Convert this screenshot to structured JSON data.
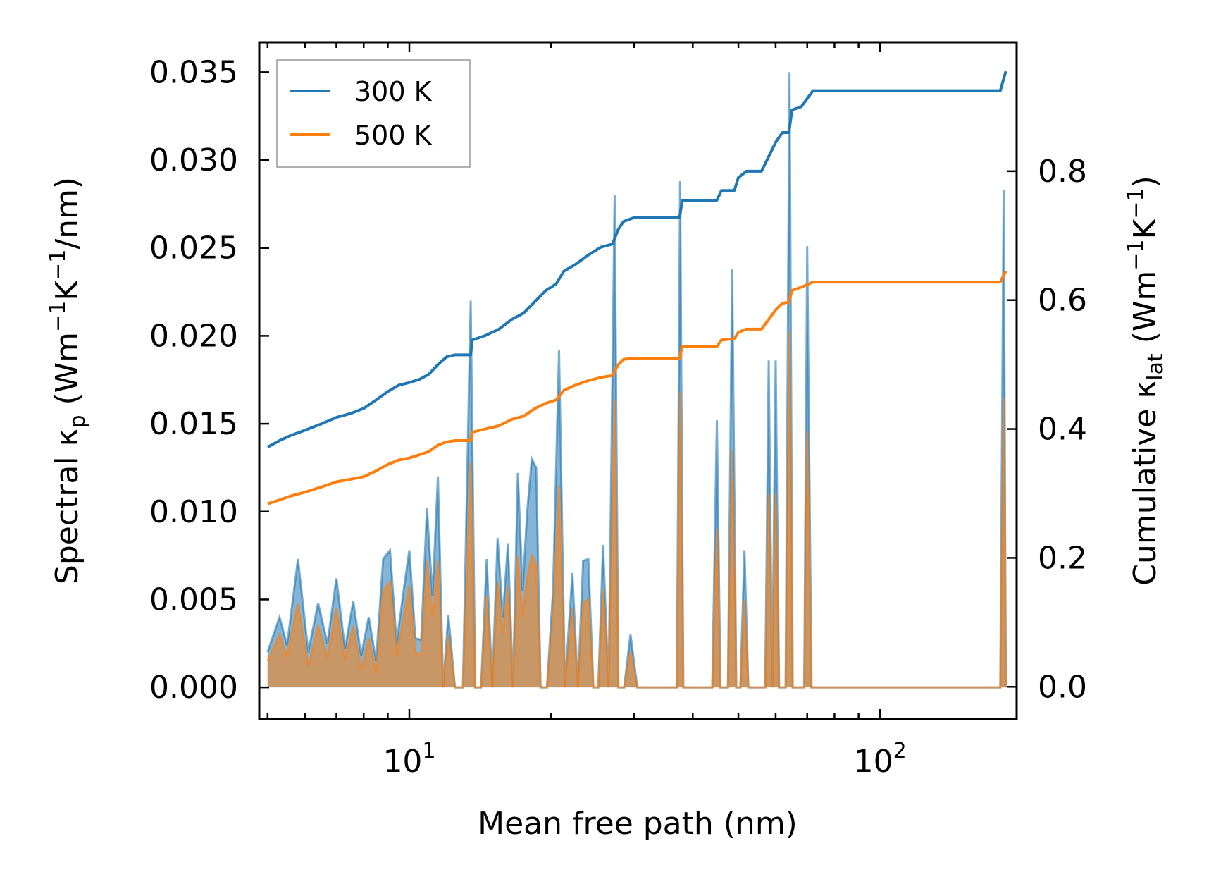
{
  "chart_data": {
    "type": "line",
    "xscale": "log",
    "xlim": [
      4.8,
      195
    ],
    "xlabel": "Mean free path (nm)",
    "xticks": [
      {
        "value": 10,
        "base": "10",
        "exp": "1"
      },
      {
        "value": 100,
        "base": "10",
        "exp": "2"
      }
    ],
    "left_axis": {
      "label_main": "Spectral κ",
      "label_sub": "p",
      "label_unit_a": " (Wm",
      "label_sup1": "−1",
      "label_unit_b": "K",
      "label_sup2": "−1",
      "label_unit_c": "/nm)",
      "ylim": [
        -0.0018,
        0.0367
      ],
      "ticks": [
        0.0,
        0.005,
        0.01,
        0.015,
        0.02,
        0.025,
        0.03,
        0.035
      ],
      "tick_labels": [
        "0.000",
        "0.005",
        "0.010",
        "0.015",
        "0.020",
        "0.025",
        "0.030",
        "0.035"
      ]
    },
    "right_axis": {
      "label_main": "Cumulative κ",
      "label_sub": "lat",
      "label_unit_a": " (Wm",
      "label_sup1": "−1",
      "label_unit_b": "K",
      "label_sup2": "−1",
      "label_unit_c": ")",
      "ylim": [
        -0.05,
        1.0
      ],
      "ticks": [
        0.0,
        0.2,
        0.4,
        0.6,
        0.8
      ],
      "tick_labels": [
        "0.0",
        "0.2",
        "0.4",
        "0.6",
        "0.8"
      ]
    },
    "legend": {
      "position": "upper-left",
      "entries": [
        {
          "label": "300 K",
          "color": "#1f77b4"
        },
        {
          "label": "500 K",
          "color": "#ff7f0e"
        }
      ]
    },
    "series": [
      {
        "name": "300 K",
        "color": "#1f77b4",
        "cumulative": [
          [
            5.0,
            0.372
          ],
          [
            5.3,
            0.382
          ],
          [
            5.6,
            0.39
          ],
          [
            6.0,
            0.398
          ],
          [
            6.5,
            0.408
          ],
          [
            7.0,
            0.418
          ],
          [
            7.5,
            0.424
          ],
          [
            8.0,
            0.432
          ],
          [
            8.5,
            0.445
          ],
          [
            9.0,
            0.458
          ],
          [
            9.5,
            0.468
          ],
          [
            10.0,
            0.472
          ],
          [
            10.5,
            0.477
          ],
          [
            11.0,
            0.485
          ],
          [
            11.5,
            0.5
          ],
          [
            12.0,
            0.512
          ],
          [
            12.5,
            0.515
          ],
          [
            13.5,
            0.515
          ],
          [
            13.6,
            0.538
          ],
          [
            14.5,
            0.545
          ],
          [
            15.5,
            0.555
          ],
          [
            16.5,
            0.57
          ],
          [
            17.5,
            0.58
          ],
          [
            18.5,
            0.598
          ],
          [
            19.5,
            0.615
          ],
          [
            20.5,
            0.625
          ],
          [
            21.3,
            0.645
          ],
          [
            22.5,
            0.655
          ],
          [
            24.0,
            0.67
          ],
          [
            25.5,
            0.682
          ],
          [
            27.0,
            0.687
          ],
          [
            27.8,
            0.71
          ],
          [
            28.5,
            0.722
          ],
          [
            30.0,
            0.728
          ],
          [
            37.5,
            0.728
          ],
          [
            38.0,
            0.755
          ],
          [
            45.0,
            0.755
          ],
          [
            46.0,
            0.77
          ],
          [
            49.0,
            0.77
          ],
          [
            50.0,
            0.79
          ],
          [
            52.0,
            0.8
          ],
          [
            56.0,
            0.8
          ],
          [
            60.0,
            0.845
          ],
          [
            62.0,
            0.86
          ],
          [
            64.0,
            0.86
          ],
          [
            65.0,
            0.895
          ],
          [
            68.0,
            0.9
          ],
          [
            72.0,
            0.925
          ],
          [
            75.0,
            0.925
          ],
          [
            180.0,
            0.925
          ],
          [
            185.0,
            0.955
          ]
        ],
        "spectral": [
          [
            5.0,
            0.002
          ],
          [
            5.3,
            0.004
          ],
          [
            5.5,
            0.0024
          ],
          [
            5.8,
            0.0073
          ],
          [
            6.1,
            0.002
          ],
          [
            6.4,
            0.0048
          ],
          [
            6.7,
            0.0025
          ],
          [
            7.0,
            0.0062
          ],
          [
            7.3,
            0.0022
          ],
          [
            7.6,
            0.0049
          ],
          [
            7.9,
            0.0018
          ],
          [
            8.2,
            0.004
          ],
          [
            8.5,
            0.0015
          ],
          [
            8.8,
            0.0073
          ],
          [
            9.1,
            0.0078
          ],
          [
            9.4,
            0.0025
          ],
          [
            9.7,
            0.0053
          ],
          [
            10.0,
            0.0078
          ],
          [
            10.3,
            0.0028
          ],
          [
            10.6,
            0.0027
          ],
          [
            10.9,
            0.0102
          ],
          [
            11.2,
            0.0052
          ],
          [
            11.5,
            0.012
          ],
          [
            11.8,
            0.0
          ],
          [
            12.1,
            0.0041
          ],
          [
            12.5,
            0.0
          ],
          [
            13.0,
            0.0
          ],
          [
            13.5,
            0.022
          ],
          [
            13.8,
            0.0
          ],
          [
            14.2,
            0.0
          ],
          [
            14.6,
            0.0073
          ],
          [
            15.0,
            0.0
          ],
          [
            15.4,
            0.0085
          ],
          [
            15.8,
            0.004
          ],
          [
            16.2,
            0.0082
          ],
          [
            16.6,
            0.0
          ],
          [
            17.0,
            0.0122
          ],
          [
            17.4,
            0.0055
          ],
          [
            17.8,
            0.01
          ],
          [
            18.2,
            0.013
          ],
          [
            18.6,
            0.0125
          ],
          [
            19.0,
            0.0
          ],
          [
            19.6,
            0.0
          ],
          [
            20.2,
            0.0055
          ],
          [
            20.8,
            0.0192
          ],
          [
            21.4,
            0.0
          ],
          [
            22.2,
            0.0065
          ],
          [
            22.8,
            0.0
          ],
          [
            23.4,
            0.0072
          ],
          [
            24.0,
            0.0073
          ],
          [
            24.6,
            0.0
          ],
          [
            25.2,
            0.0
          ],
          [
            25.8,
            0.0081
          ],
          [
            26.5,
            0.0
          ],
          [
            27.3,
            0.028
          ],
          [
            27.8,
            0.0
          ],
          [
            28.6,
            0.0
          ],
          [
            29.5,
            0.003
          ],
          [
            30.5,
            0.0
          ],
          [
            37.0,
            0.0
          ],
          [
            37.6,
            0.0288
          ],
          [
            38.2,
            0.0
          ],
          [
            44.0,
            0.0
          ],
          [
            45.0,
            0.0152
          ],
          [
            45.8,
            0.0
          ],
          [
            47.5,
            0.0
          ],
          [
            48.5,
            0.0238
          ],
          [
            49.5,
            0.0
          ],
          [
            50.5,
            0.0
          ],
          [
            51.5,
            0.0078
          ],
          [
            52.5,
            0.0
          ],
          [
            57.0,
            0.0
          ],
          [
            58.0,
            0.0186
          ],
          [
            59.0,
            0.0
          ],
          [
            60.0,
            0.0186
          ],
          [
            61.0,
            0.0
          ],
          [
            63.0,
            0.0
          ],
          [
            64.2,
            0.035
          ],
          [
            65.2,
            0.0
          ],
          [
            69.0,
            0.0
          ],
          [
            70.0,
            0.0251
          ],
          [
            71.5,
            0.0
          ],
          [
            180.0,
            0.0
          ],
          [
            183.0,
            0.0283
          ],
          [
            185.0,
            0.0
          ]
        ]
      },
      {
        "name": "500 K",
        "color": "#ff7f0e",
        "cumulative": [
          [
            5.0,
            0.284
          ],
          [
            5.3,
            0.29
          ],
          [
            5.6,
            0.296
          ],
          [
            6.0,
            0.302
          ],
          [
            6.5,
            0.31
          ],
          [
            7.0,
            0.318
          ],
          [
            7.5,
            0.322
          ],
          [
            8.0,
            0.326
          ],
          [
            8.5,
            0.335
          ],
          [
            9.0,
            0.345
          ],
          [
            9.5,
            0.352
          ],
          [
            10.0,
            0.355
          ],
          [
            10.5,
            0.36
          ],
          [
            11.0,
            0.365
          ],
          [
            11.5,
            0.375
          ],
          [
            12.0,
            0.38
          ],
          [
            12.5,
            0.382
          ],
          [
            13.5,
            0.382
          ],
          [
            13.6,
            0.395
          ],
          [
            14.5,
            0.4
          ],
          [
            15.5,
            0.405
          ],
          [
            16.5,
            0.415
          ],
          [
            17.5,
            0.42
          ],
          [
            18.5,
            0.432
          ],
          [
            19.5,
            0.44
          ],
          [
            20.5,
            0.445
          ],
          [
            21.3,
            0.46
          ],
          [
            22.5,
            0.468
          ],
          [
            24.0,
            0.475
          ],
          [
            25.5,
            0.48
          ],
          [
            27.0,
            0.483
          ],
          [
            27.8,
            0.5
          ],
          [
            28.5,
            0.508
          ],
          [
            30.0,
            0.51
          ],
          [
            37.5,
            0.51
          ],
          [
            38.0,
            0.528
          ],
          [
            45.0,
            0.528
          ],
          [
            46.0,
            0.538
          ],
          [
            49.0,
            0.54
          ],
          [
            50.0,
            0.55
          ],
          [
            52.0,
            0.555
          ],
          [
            56.0,
            0.555
          ],
          [
            60.0,
            0.585
          ],
          [
            62.0,
            0.595
          ],
          [
            64.0,
            0.597
          ],
          [
            65.0,
            0.615
          ],
          [
            68.0,
            0.62
          ],
          [
            72.0,
            0.628
          ],
          [
            75.0,
            0.628
          ],
          [
            180.0,
            0.628
          ],
          [
            185.0,
            0.645
          ]
        ],
        "spectral": [
          [
            5.0,
            0.0015
          ],
          [
            5.3,
            0.003
          ],
          [
            5.5,
            0.0018
          ],
          [
            5.8,
            0.0048
          ],
          [
            6.1,
            0.0012
          ],
          [
            6.4,
            0.0035
          ],
          [
            6.7,
            0.0017
          ],
          [
            7.0,
            0.0045
          ],
          [
            7.3,
            0.0016
          ],
          [
            7.6,
            0.0035
          ],
          [
            7.9,
            0.001
          ],
          [
            8.2,
            0.0028
          ],
          [
            8.5,
            0.0008
          ],
          [
            8.8,
            0.0055
          ],
          [
            9.1,
            0.006
          ],
          [
            9.4,
            0.0018
          ],
          [
            9.7,
            0.0038
          ],
          [
            10.0,
            0.0058
          ],
          [
            10.3,
            0.002
          ],
          [
            10.6,
            0.0018
          ],
          [
            10.9,
            0.0072
          ],
          [
            11.2,
            0.004
          ],
          [
            11.5,
            0.0072
          ],
          [
            11.8,
            0.0
          ],
          [
            12.1,
            0.003
          ],
          [
            12.5,
            0.0
          ],
          [
            13.0,
            0.0
          ],
          [
            13.5,
            0.0128
          ],
          [
            13.8,
            0.0
          ],
          [
            14.2,
            0.0
          ],
          [
            14.6,
            0.0052
          ],
          [
            15.0,
            0.0
          ],
          [
            15.4,
            0.006
          ],
          [
            15.8,
            0.003
          ],
          [
            16.2,
            0.0058
          ],
          [
            16.6,
            0.0
          ],
          [
            17.0,
            0.0075
          ],
          [
            17.4,
            0.004
          ],
          [
            17.8,
            0.0063
          ],
          [
            18.2,
            0.0075
          ],
          [
            18.6,
            0.007
          ],
          [
            19.0,
            0.0
          ],
          [
            19.6,
            0.0
          ],
          [
            20.2,
            0.004
          ],
          [
            20.8,
            0.0115
          ],
          [
            21.4,
            0.0
          ],
          [
            22.2,
            0.0045
          ],
          [
            22.8,
            0.0
          ],
          [
            23.4,
            0.0048
          ],
          [
            24.0,
            0.005
          ],
          [
            24.6,
            0.0
          ],
          [
            25.2,
            0.0
          ],
          [
            25.8,
            0.0056
          ],
          [
            26.5,
            0.0
          ],
          [
            27.3,
            0.0164
          ],
          [
            27.8,
            0.0
          ],
          [
            28.6,
            0.0
          ],
          [
            29.5,
            0.002
          ],
          [
            30.5,
            0.0
          ],
          [
            37.0,
            0.0
          ],
          [
            37.6,
            0.0168
          ],
          [
            38.2,
            0.0
          ],
          [
            44.0,
            0.0
          ],
          [
            45.0,
            0.009
          ],
          [
            45.8,
            0.0
          ],
          [
            47.5,
            0.0
          ],
          [
            48.5,
            0.0135
          ],
          [
            49.5,
            0.0
          ],
          [
            50.5,
            0.0
          ],
          [
            51.5,
            0.005
          ],
          [
            52.5,
            0.0
          ],
          [
            57.0,
            0.0
          ],
          [
            58.0,
            0.011
          ],
          [
            59.0,
            0.0
          ],
          [
            60.0,
            0.011
          ],
          [
            61.0,
            0.0
          ],
          [
            63.0,
            0.0
          ],
          [
            64.2,
            0.0203
          ],
          [
            65.2,
            0.0
          ],
          [
            69.0,
            0.0
          ],
          [
            70.0,
            0.0146
          ],
          [
            71.5,
            0.0
          ],
          [
            180.0,
            0.0
          ],
          [
            183.0,
            0.0165
          ],
          [
            185.0,
            0.0
          ]
        ]
      }
    ]
  }
}
